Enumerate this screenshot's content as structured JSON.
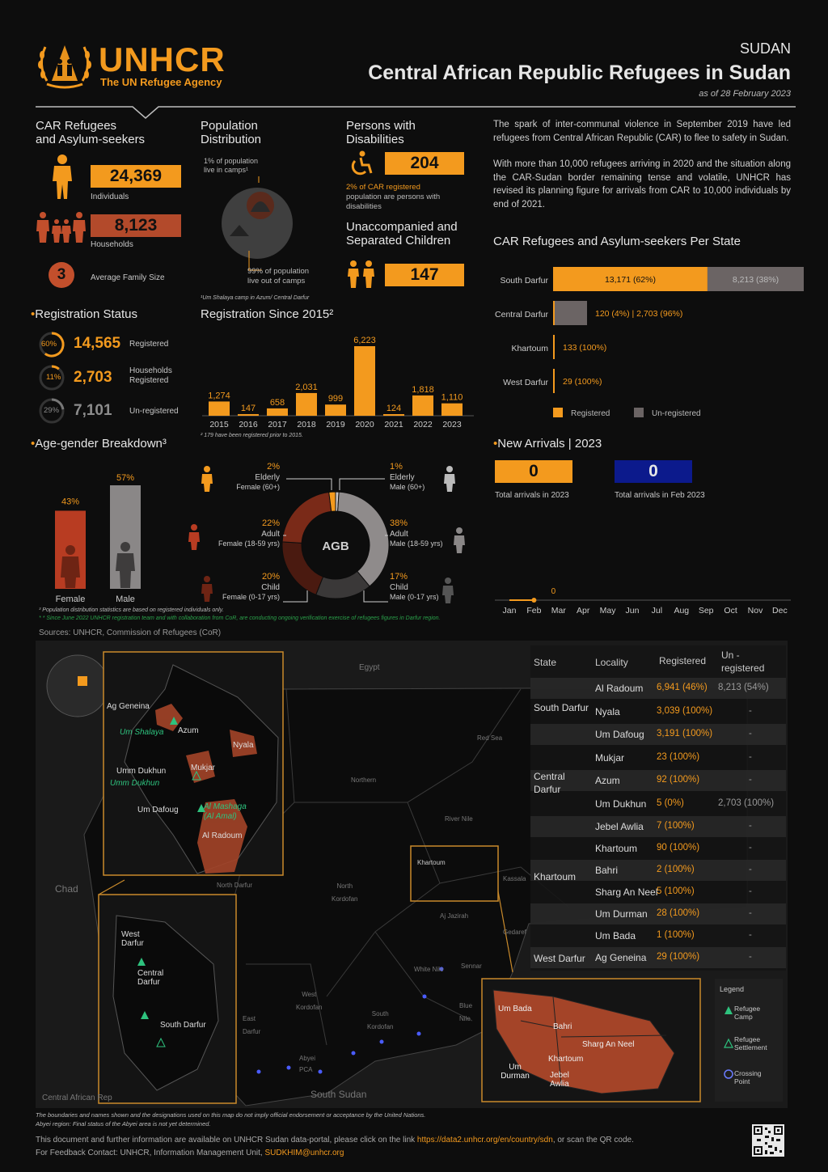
{
  "header": {
    "logo_text": "UNHCR",
    "logo_sub": "The UN Refugee Agency",
    "country": "SUDAN",
    "title": "Central African Republic Refugees in Sudan",
    "date": "as of 28 February 2023"
  },
  "refugees": {
    "title_line1": "CAR Refugees",
    "title_line2": "and Asylum-seekers",
    "individuals_value": "24,369",
    "individuals_label": "Individuals",
    "households_value": "8,123",
    "households_label": "Households",
    "family_size_value": "3",
    "family_size_label": "Average Family Size"
  },
  "population": {
    "title_line1": "Population",
    "title_line2": "Distribution",
    "in_camps_line1": "1% of population",
    "in_camps_line2": "live in camps¹",
    "out_camps_line1": "99% of population",
    "out_camps_line2": "live out of camps",
    "footnote": "¹Um Shalaya camp in Azum/ Central Darfur",
    "in_camps_pct": 1,
    "out_camps_pct": 99
  },
  "disabilities": {
    "title_line1": "Persons with",
    "title_line2": "Disabilities",
    "value": "204",
    "note_line1": "2% of CAR registered",
    "note_line2": "population are persons with",
    "note_line3": "disabilities"
  },
  "children": {
    "title_line1": "Unaccompanied and",
    "title_line2": "Separated Children",
    "value": "147"
  },
  "intro": {
    "para1": "The spark of inter-communal violence in September 2019 have led refugees from Central African Republic (CAR) to flee to safety in Sudan.",
    "para2": "With more than 10,000 refugees arriving in 2020 and the situation along the CAR-Sudan border remaining tense and volatile, UNHCR has revised its planning figure for arrivals from CAR to 10,000 individuals by end of 2021."
  },
  "registration_status": {
    "title": "Registration Status",
    "items": [
      {
        "pct": "60%",
        "value": "14,565",
        "label": "Registered",
        "label2": ""
      },
      {
        "pct": "11%",
        "value": "2,703",
        "label": "Households",
        "label2": "Registered"
      },
      {
        "pct": "29%",
        "value": "7,101",
        "label": "Un-registered",
        "label2": ""
      }
    ]
  },
  "registration_since": {
    "title": "Registration Since 2015²",
    "footnote": "² 179 have been registered prior to 2015.",
    "years": [
      "2015",
      "2016",
      "2017",
      "2018",
      "2019",
      "2020",
      "2021",
      "2022",
      "2023"
    ],
    "values": [
      1274,
      147,
      658,
      2031,
      999,
      6223,
      124,
      1818,
      1110
    ],
    "labels": [
      "1,274",
      "147",
      "658",
      "2,031",
      "999",
      "6,223",
      "124",
      "1,818",
      "1,110"
    ]
  },
  "per_state": {
    "title": "CAR Refugees and Asylum-seekers Per State",
    "legend_registered": "Registered",
    "legend_unregistered": "Un-registered",
    "colors": {
      "registered": "#f39a1e",
      "unregistered": "#6b6464"
    },
    "rows": [
      {
        "state": "South Darfur",
        "registered": 13171,
        "unregistered": 8213,
        "reg_label": "13,171 (62%)",
        "unreg_label": "8,213 (38%)"
      },
      {
        "state": "Central Darfur",
        "registered": 120,
        "unregistered": 2703,
        "reg_label": "120 (4%) | 2,703 (96%)",
        "unreg_label": ""
      },
      {
        "state": "Khartoum",
        "registered": 133,
        "unregistered": 0,
        "reg_label": "133 (100%)",
        "unreg_label": ""
      },
      {
        "state": "West Darfur",
        "registered": 29,
        "unregistered": 0,
        "reg_label": "29 (100%)",
        "unreg_label": ""
      }
    ]
  },
  "age_gender": {
    "title": "Age-gender Breakdown³",
    "female_pct": "43%",
    "male_pct": "57%",
    "female_label": "Female",
    "male_label": "Male",
    "female_value": 43,
    "male_value": 57,
    "center_label": "AGB",
    "segments": [
      {
        "pct": "2%",
        "line1": "Elderly",
        "line2": "Female (60+)",
        "value": 2
      },
      {
        "pct": "1%",
        "line1": "Elderly",
        "line2": "Male (60+)",
        "value": 1
      },
      {
        "pct": "22%",
        "line1": "Adult",
        "line2": "Female (18-59 yrs)",
        "value": 22
      },
      {
        "pct": "38%",
        "line1": "Adult",
        "line2": "Male (18-59 yrs)",
        "value": 38
      },
      {
        "pct": "20%",
        "line1": "Child",
        "line2": "Female (0-17 yrs)",
        "value": 20
      },
      {
        "pct": "17%",
        "line1": "Child",
        "line2": "Male (0-17 yrs)",
        "value": 17
      }
    ],
    "footnote1": "³ Population distribution statistics are based on registered individuals only.",
    "footnote2": "* * Since June 2022 UNHCR registration team and with collaboration from CoR, are conducting ongoing verification exercise of refugees figures in Darfur region."
  },
  "new_arrivals": {
    "title": "New Arrivals | 2023",
    "total_value": "0",
    "total_label": "Total arrivals in 2023",
    "month_value": "0",
    "month_label": "Total arrivals in Feb 2023",
    "point_label": "0",
    "months": [
      "Jan",
      "Feb",
      "Mar",
      "Apr",
      "May",
      "Jun",
      "Jul",
      "Aug",
      "Sep",
      "Oct",
      "Nov",
      "Dec"
    ]
  },
  "sources": "Sources: UNHCR, Commission of Refugees (CoR)",
  "map": {
    "labels": {
      "egypt": "Egypt",
      "chad": "Chad",
      "car": "Central African Rep",
      "south_sudan": "South Sudan",
      "red_sea": "Red Sea",
      "northern": "Northern",
      "river_nile": "River Nile",
      "khartoum": "Khartoum",
      "kassala": "Kassala",
      "north_kordofan_1": "North",
      "north_kordofan_2": "Kordofan",
      "north_darfur": "North Darfur",
      "aj_jazirah": "Aj Jazirah",
      "gedaref": "Gedaref",
      "white_nile": "White Nile",
      "sennar": "Sennar",
      "blue_nile_1": "Blue",
      "blue_nile_2": "Nile",
      "west_kordofan_1": "West",
      "west_kordofan_2": "Kordofan",
      "south_kordofan_1": "South",
      "south_kordofan_2": "Kordofan",
      "east_darfur_1": "East",
      "east_darfur_2": "Darfur",
      "abyei_1": "Abyei",
      "abyei_2": "PCA",
      "ag_geneina": "Ag Geneina",
      "um_shalaya": "Um Shalaya",
      "azum": "Azum",
      "nyala": "Nyala",
      "umm_dukhun": "Umm Dukhun",
      "umm_dukhun_camp": "Umm Dukhun",
      "mukjar": "Mukjar",
      "um_dafoug": "Um Dafoug",
      "al_mashaga": "Al Mashaga",
      "al_amal": "(Al Amal)",
      "al_radoum": "Al Radoum",
      "west_darfur": "West Darfur",
      "central_darfur": "Central Darfur",
      "south_darfur": "South Darfur",
      "kh_um_bada": "Um Bada",
      "kh_bahri": "Bahri",
      "kh_sharg": "Sharg An Neel",
      "kh_khartoum": "Khartoum",
      "kh_um_durman": "Um Durman",
      "kh_jebel": "Jebel Awlia"
    },
    "legend": {
      "title": "Legend",
      "camp": "Refugee Camp",
      "settlement": "Refugee Settlement",
      "crossing": "Crossing Point"
    },
    "disclaimer1": "The boundaries and names shown and the designations used on this map do not imply official endorsement or acceptance by the United Nations.",
    "disclaimer2": "Abyei region: Final status of the Abyei area is not yet determined."
  },
  "table": {
    "headers": {
      "state": "State",
      "locality": "Locality",
      "registered": "Registered",
      "unregistered_1": "Un -",
      "unregistered_2": "registered"
    },
    "groups": [
      {
        "state": "South Darfur",
        "rows": [
          {
            "locality": "Al Radoum",
            "registered": "6,941 (46%)",
            "unregistered": "8,213 (54%)"
          },
          {
            "locality": "Nyala",
            "registered": "3,039 (100%)",
            "unregistered": "-"
          },
          {
            "locality": "Um Dafoug",
            "registered": "3,191 (100%)",
            "unregistered": "-"
          }
        ]
      },
      {
        "state": "Central Darfur",
        "rows": [
          {
            "locality": "Mukjar",
            "registered": "23 (100%)",
            "unregistered": "-"
          },
          {
            "locality": "Azum",
            "registered": "92 (100%)",
            "unregistered": "-"
          },
          {
            "locality": "Um Dukhun",
            "registered": "5 (0%)",
            "unregistered": "2,703 (100%)"
          }
        ]
      },
      {
        "state": "Khartoum",
        "rows": [
          {
            "locality": "Jebel Awlia",
            "registered": "7 (100%)",
            "unregistered": "-"
          },
          {
            "locality": "Khartoum",
            "registered": "90 (100%)",
            "unregistered": "-"
          },
          {
            "locality": "Bahri",
            "registered": "2 (100%)",
            "unregistered": "-"
          },
          {
            "locality": "Sharg An Neel",
            "registered": "5 (100%)",
            "unregistered": "-"
          },
          {
            "locality": "Um Durman",
            "registered": "28 (100%)",
            "unregistered": "-"
          },
          {
            "locality": "Um Bada",
            "registered": "1 (100%)",
            "unregistered": "-"
          }
        ]
      },
      {
        "state": "West Darfur",
        "rows": [
          {
            "locality": "Ag Geneina",
            "registered": "29 (100%)",
            "unregistered": "-"
          }
        ]
      }
    ]
  },
  "footer": {
    "line1_pre": "This document and further information are available on UNHCR Sudan data-portal, please click on the link ",
    "link": "https://data2.unhcr.org/en/country/sdn",
    "line1_post": ", or scan the QR code.",
    "line2_pre": "For Feedback Contact: UNHCR, Information Management Unit, ",
    "email": "SUDKHIM@unhcr.org"
  },
  "chart_data": [
    {
      "type": "bar",
      "title": "Registration Since 2015²",
      "categories": [
        "2015",
        "2016",
        "2017",
        "2018",
        "2019",
        "2020",
        "2021",
        "2022",
        "2023"
      ],
      "values": [
        1274,
        147,
        658,
        2031,
        999,
        6223,
        124,
        1818,
        1110
      ]
    },
    {
      "type": "bar",
      "title": "CAR Refugees and Asylum-seekers Per State",
      "categories": [
        "South Darfur",
        "Central Darfur",
        "Khartoum",
        "West Darfur"
      ],
      "series": [
        {
          "name": "Registered",
          "values": [
            13171,
            120,
            133,
            29
          ]
        },
        {
          "name": "Un-registered",
          "values": [
            8213,
            2703,
            0,
            0
          ]
        }
      ]
    },
    {
      "type": "pie",
      "title": "Age-gender Breakdown³",
      "categories": [
        "Elderly Female (60+)",
        "Elderly Male (60+)",
        "Adult Female (18-59 yrs)",
        "Adult Male (18-59 yrs)",
        "Child Female (0-17 yrs)",
        "Child Male (0-17 yrs)"
      ],
      "values": [
        2,
        1,
        22,
        38,
        20,
        17
      ]
    },
    {
      "type": "line",
      "title": "New Arrivals | 2023",
      "x": [
        "Jan",
        "Feb"
      ],
      "values": [
        0,
        0
      ]
    }
  ]
}
